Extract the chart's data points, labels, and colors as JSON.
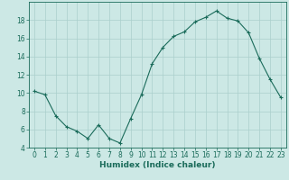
{
  "x": [
    0,
    1,
    2,
    3,
    4,
    5,
    6,
    7,
    8,
    9,
    10,
    11,
    12,
    13,
    14,
    15,
    16,
    17,
    18,
    19,
    20,
    21,
    22,
    23
  ],
  "y": [
    10.2,
    9.8,
    7.5,
    6.3,
    5.8,
    5.0,
    6.5,
    5.0,
    4.5,
    7.2,
    9.8,
    13.2,
    15.0,
    16.2,
    16.7,
    17.8,
    18.3,
    19.0,
    18.2,
    17.9,
    16.6,
    13.8,
    11.5,
    9.5
  ],
  "line_color": "#1a6b5a",
  "marker": "+",
  "marker_size": 3,
  "marker_lw": 0.8,
  "line_width": 0.8,
  "bg_color": "#cce8e5",
  "grid_color": "#aacfcc",
  "xlabel": "Humidex (Indice chaleur)",
  "ylim": [
    4,
    20
  ],
  "xlim": [
    -0.5,
    23.5
  ],
  "yticks": [
    4,
    6,
    8,
    10,
    12,
    14,
    16,
    18
  ],
  "xticks": [
    0,
    1,
    2,
    3,
    4,
    5,
    6,
    7,
    8,
    9,
    10,
    11,
    12,
    13,
    14,
    15,
    16,
    17,
    18,
    19,
    20,
    21,
    22,
    23
  ],
  "tick_color": "#1a6b5a",
  "label_color": "#1a6b5a",
  "axis_fontsize": 5.5,
  "xlabel_fontsize": 6.5,
  "xlabel_fontweight": "bold"
}
